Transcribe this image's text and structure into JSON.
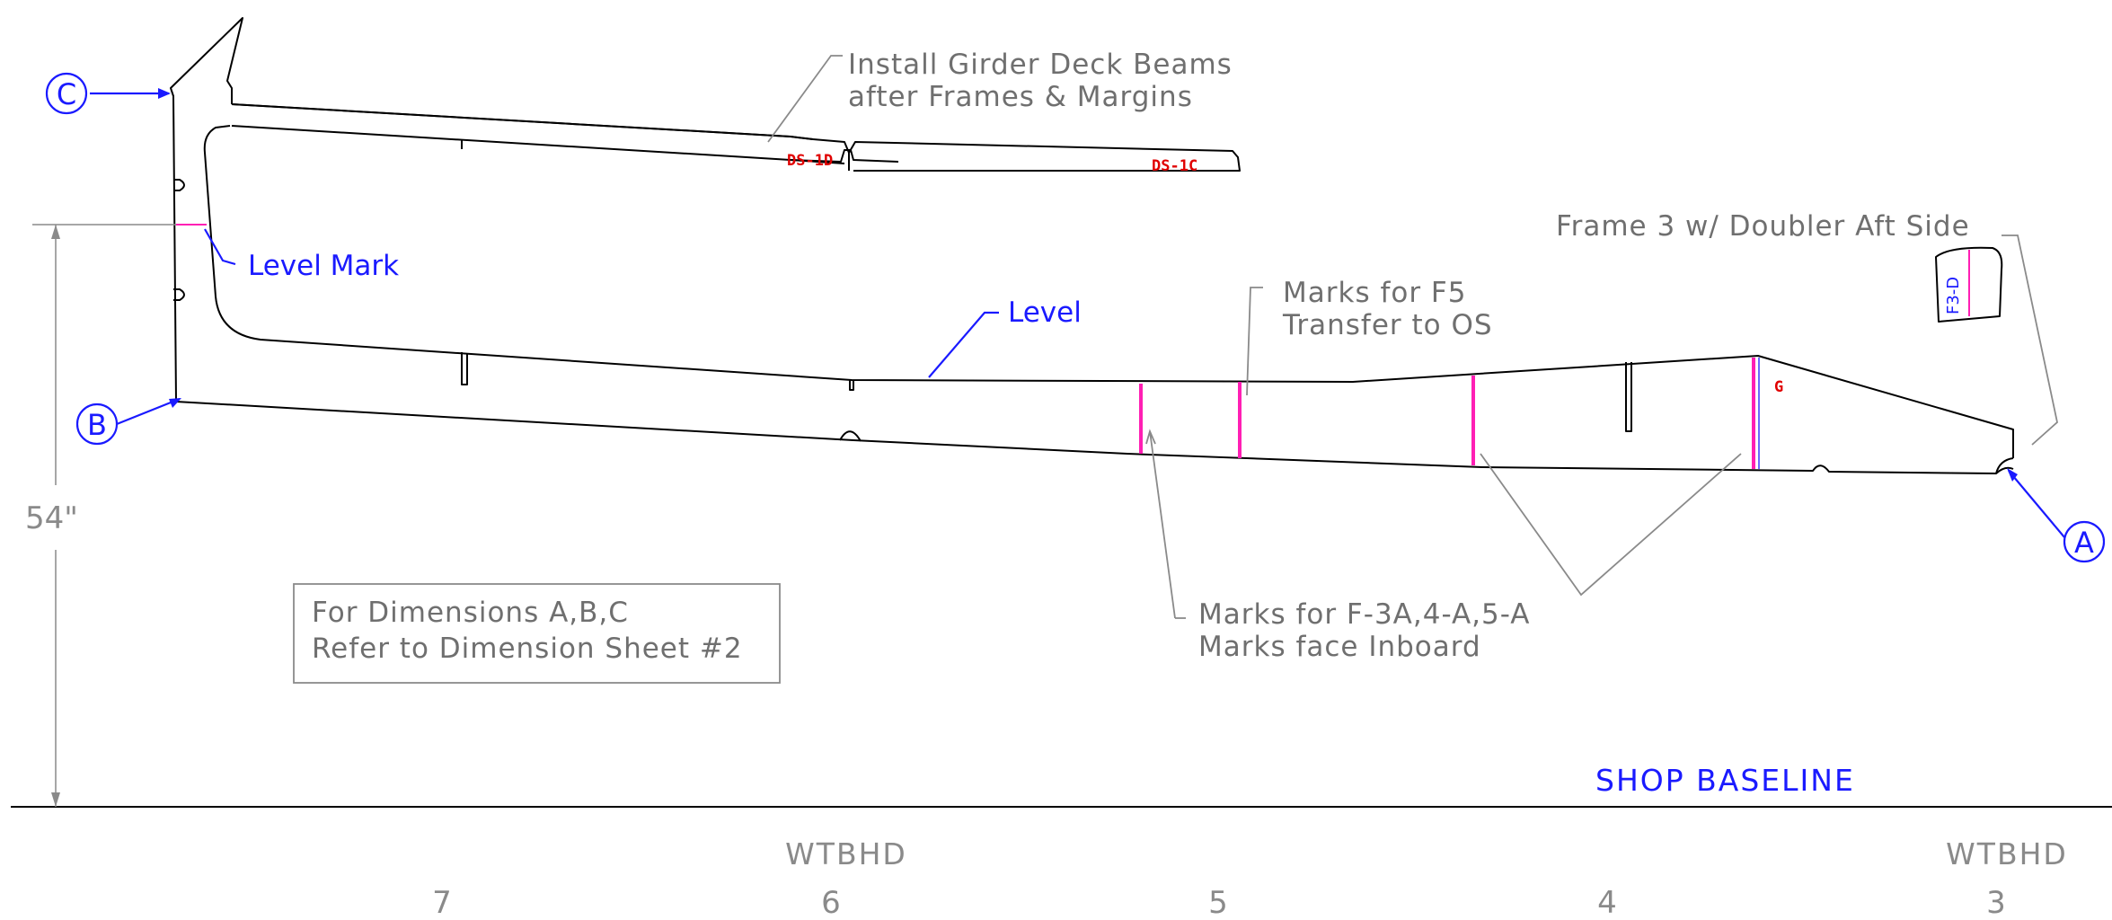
{
  "notes": {
    "girder_line1": "Install Girder Deck Beams",
    "girder_line2": "after Frames & Margins",
    "frame3": "Frame 3 w/ Doubler Aft Side",
    "f5_line1": "Marks for F5",
    "f5_line2": "Transfer to OS",
    "marks_line1": "Marks for F-3A,4-A,5-A",
    "marks_line2": "Marks face Inboard",
    "dims_line1": "For Dimensions A,B,C",
    "dims_line2": "Refer to Dimension Sheet #2"
  },
  "labels": {
    "level_mark": "Level Mark",
    "level": "Level",
    "shop_baseline": "SHOP BASELINE",
    "ds_1d": "DS-1D",
    "ds_1c": "DS-1C",
    "f3_d": "F3-D",
    "g": "G"
  },
  "callouts": {
    "a": "A",
    "b": "B",
    "c": "C"
  },
  "dimension": {
    "height": "54\""
  },
  "stations": [
    {
      "top": "",
      "num": "7"
    },
    {
      "top": "WTBHD",
      "num": "6"
    },
    {
      "top": "",
      "num": "5"
    },
    {
      "top": "",
      "num": "4"
    },
    {
      "top": "WTBHD",
      "num": "3"
    }
  ],
  "colors": {
    "outline": "#000000",
    "leader": "#8a8a8a",
    "annotation_blue": "#1a1aff",
    "part_label_red": "#e00000",
    "mark_magenta": "#ff1fb4"
  }
}
